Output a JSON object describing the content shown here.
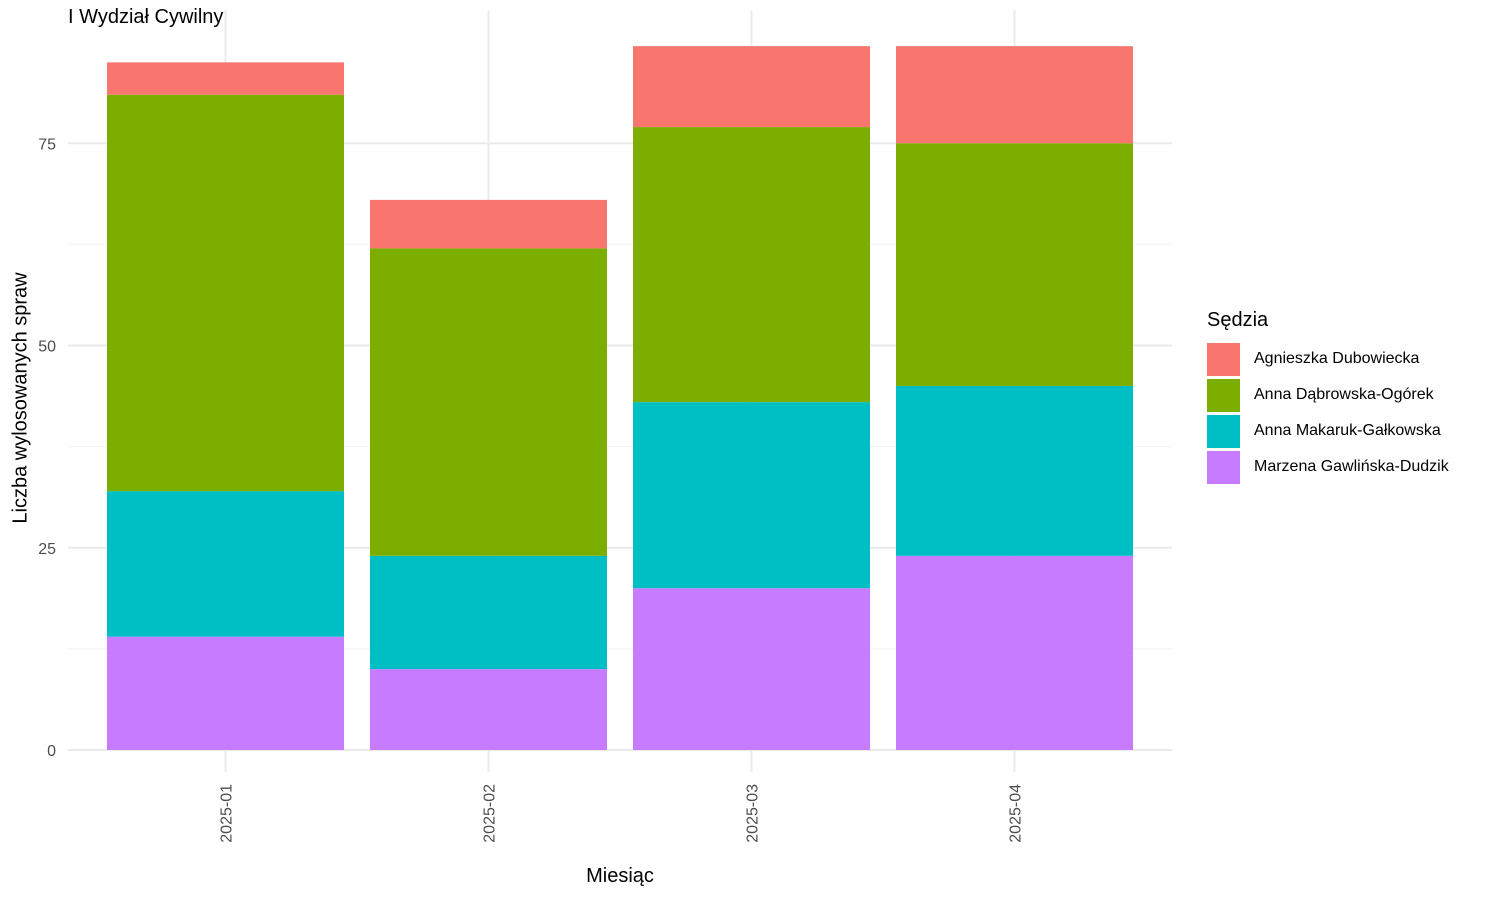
{
  "chart_data": {
    "type": "bar",
    "stacked": true,
    "title": "I Wydział Cywilny",
    "xlabel": "Miesiąc",
    "ylabel": "Liczba wylosowanych spraw",
    "categories": [
      "2025-01",
      "2025-02",
      "2025-03",
      "2025-04"
    ],
    "ylim": [
      0,
      91
    ],
    "yticks": [
      0,
      25,
      50,
      75
    ],
    "grid": true,
    "legend_title": "Sędzia",
    "legend_position": "right",
    "series": [
      {
        "name": "Agnieszka Dubowiecka",
        "color": "#F8766D",
        "values": [
          4,
          6,
          10,
          12
        ]
      },
      {
        "name": "Anna Dąbrowska-Ogórek",
        "color": "#7CAE00",
        "values": [
          49,
          38,
          34,
          30
        ]
      },
      {
        "name": "Anna Makaruk-Gałkowska",
        "color": "#00BFC4",
        "values": [
          18,
          14,
          23,
          21
        ]
      },
      {
        "name": "Marzena Gawlińska-Dudzik",
        "color": "#C77CFF",
        "values": [
          14,
          10,
          20,
          24
        ]
      }
    ]
  }
}
